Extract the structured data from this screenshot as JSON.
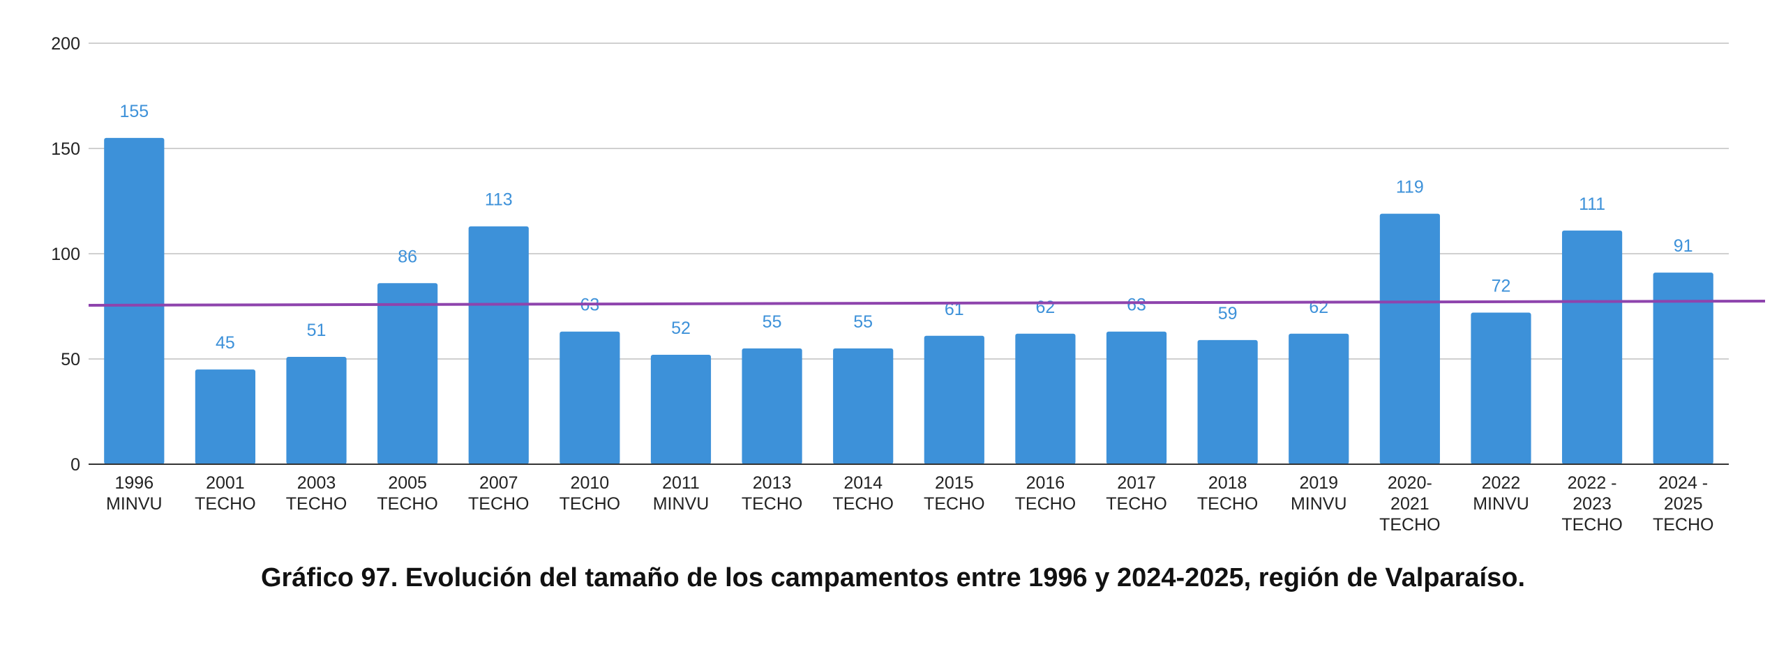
{
  "caption": "Gráfico 97. Evolución del tamaño de los campamentos entre 1996 y 2024-2025, región de Valparaíso.",
  "chart_data": {
    "type": "bar",
    "title": "Gráfico 97. Evolución del tamaño de los campamentos entre 1996 y 2024-2025, región de Valparaíso.",
    "xlabel": "",
    "ylabel": "",
    "ylim": [
      0,
      200
    ],
    "yticks": [
      0,
      50,
      100,
      150,
      200
    ],
    "grid": true,
    "categories": [
      [
        "1996",
        "MINVU"
      ],
      [
        "2001",
        "TECHO"
      ],
      [
        "2003",
        "TECHO"
      ],
      [
        "2005",
        "TECHO"
      ],
      [
        "2007",
        "TECHO"
      ],
      [
        "2010",
        "TECHO"
      ],
      [
        "2011",
        "MINVU"
      ],
      [
        "2013",
        "TECHO"
      ],
      [
        "2014",
        "TECHO"
      ],
      [
        "2015",
        "TECHO"
      ],
      [
        "2016",
        "TECHO"
      ],
      [
        "2017",
        "TECHO"
      ],
      [
        "2018",
        "TECHO"
      ],
      [
        "2019",
        "MINVU"
      ],
      [
        "2020-",
        "2021",
        "TECHO"
      ],
      [
        "2022",
        "MINVU"
      ],
      [
        "2022 -",
        "2023",
        "TECHO"
      ],
      [
        "2024 -",
        "2025",
        "TECHO"
      ]
    ],
    "series": [
      {
        "values": [
          155,
          45,
          51,
          86,
          113,
          63,
          52,
          55,
          55,
          61,
          62,
          63,
          59,
          62,
          119,
          72,
          111,
          91
        ]
      }
    ],
    "trendline": {
      "type": "linear",
      "start": 75.5,
      "end": 77.5
    },
    "colors": {
      "bar": "#3d91d9",
      "label": "#3d91d9",
      "trend": "#8e44ad",
      "grid": "#d0d0d0",
      "axis": "#333333"
    }
  }
}
